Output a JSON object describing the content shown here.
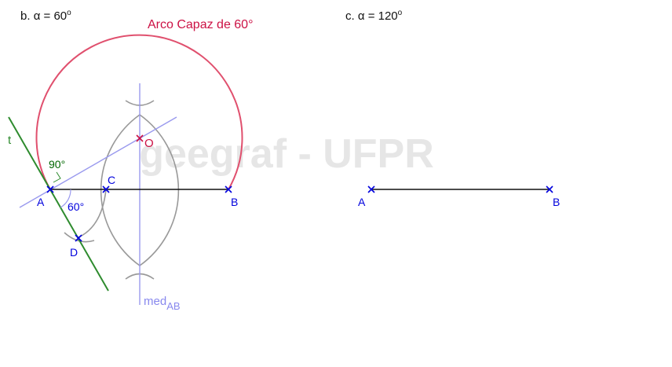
{
  "section_b": {
    "letter": "b.",
    "alpha_symbol": "α",
    "equals_value": "= 60",
    "degree": "o"
  },
  "section_c": {
    "letter": "c.",
    "alpha_symbol": "α",
    "equals_value": "= 120",
    "degree": "o"
  },
  "arc_title": "Arco Capaz de 60°",
  "watermark": "geegraf - UFPR",
  "points_b": {
    "A": "A",
    "B": "B",
    "C": "C",
    "D": "D",
    "O": "O"
  },
  "points_c": {
    "A": "A",
    "B": "B"
  },
  "line_t_label": "t",
  "angle_90": "90°",
  "angle_60": "60°",
  "mediatrix": {
    "main": "med",
    "subscript": "AB"
  },
  "colors": {
    "arc": "#e0506e",
    "title": "#cc1144",
    "point": "#0000dd",
    "mediatrix": "#9999ee",
    "tangent": "#2e8b2e",
    "construction": "#999999",
    "watermark": "#e6e6e6"
  }
}
